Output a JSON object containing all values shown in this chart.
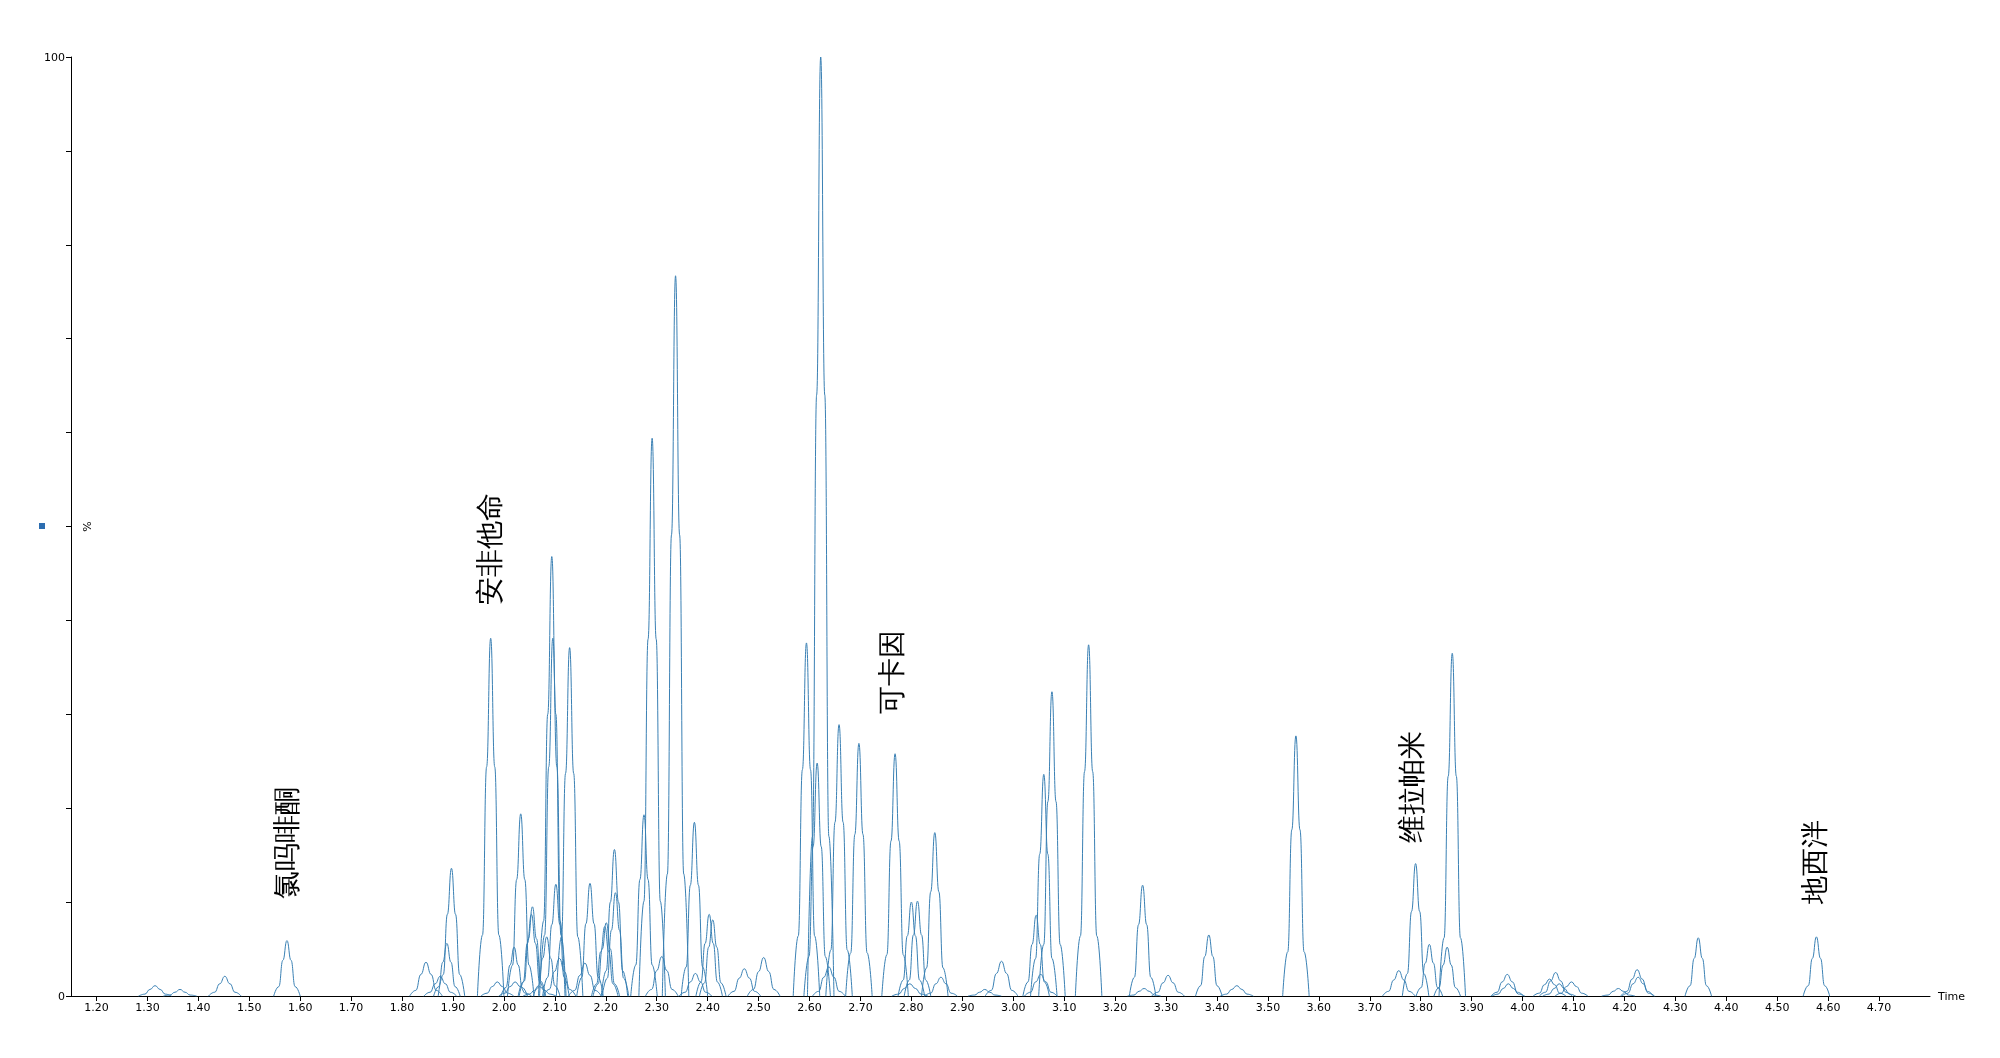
{
  "chart_data": {
    "type": "line",
    "xlabel": "Time",
    "ylabel": "%",
    "color": "#3a80b4",
    "xlim": [
      1.15,
      4.8
    ],
    "ylim": [
      0,
      100
    ],
    "xticks": [
      {
        "value": 1.2,
        "label": "1.20"
      },
      {
        "value": 1.3,
        "label": "1.30"
      },
      {
        "value": 1.4,
        "label": "1.40"
      },
      {
        "value": 1.5,
        "label": "1.50"
      },
      {
        "value": 1.6,
        "label": "1.60"
      },
      {
        "value": 1.7,
        "label": "1.70"
      },
      {
        "value": 1.8,
        "label": "1.80"
      },
      {
        "value": 1.9,
        "label": "1.90"
      },
      {
        "value": 2.0,
        "label": "2.00"
      },
      {
        "value": 2.1,
        "label": "2.10"
      },
      {
        "value": 2.2,
        "label": "2.20"
      },
      {
        "value": 2.3,
        "label": "2.30"
      },
      {
        "value": 2.4,
        "label": "2.40"
      },
      {
        "value": 2.5,
        "label": "2.50"
      },
      {
        "value": 2.6,
        "label": "2.60"
      },
      {
        "value": 2.7,
        "label": "2.70"
      },
      {
        "value": 2.8,
        "label": "2.80"
      },
      {
        "value": 2.9,
        "label": "2.90"
      },
      {
        "value": 3.0,
        "label": "3.00"
      },
      {
        "value": 3.1,
        "label": "3.10"
      },
      {
        "value": 3.2,
        "label": "3.20"
      },
      {
        "value": 3.3,
        "label": "3.30"
      },
      {
        "value": 3.4,
        "label": "3.40"
      },
      {
        "value": 3.5,
        "label": "3.50"
      },
      {
        "value": 3.6,
        "label": "3.60"
      },
      {
        "value": 3.7,
        "label": "3.70"
      },
      {
        "value": 3.8,
        "label": "3.80"
      },
      {
        "value": 3.9,
        "label": "3.90"
      },
      {
        "value": 4.0,
        "label": "4.00"
      },
      {
        "value": 4.1,
        "label": "4.10"
      },
      {
        "value": 4.2,
        "label": "4.20"
      },
      {
        "value": 4.3,
        "label": "4.30"
      },
      {
        "value": 4.4,
        "label": "4.40"
      },
      {
        "value": 4.5,
        "label": "4.50"
      },
      {
        "value": 4.6,
        "label": "4.60"
      },
      {
        "value": 4.7,
        "label": "4.70"
      }
    ],
    "yticks": [
      0,
      {
        "value": 10,
        "label": null
      },
      {
        "value": 20,
        "label": null
      },
      {
        "value": 30,
        "label": null
      },
      {
        "value": 40,
        "label": null
      },
      {
        "value": 50,
        "label": null
      },
      {
        "value": 60,
        "label": null
      },
      {
        "value": 70,
        "label": null
      },
      {
        "value": 80,
        "label": null
      },
      {
        "value": 90,
        "label": null
      },
      100
    ],
    "annotations": [
      "氯吗啡酮",
      "安非他命",
      "可卡因",
      "维拉帕米",
      "地西泮"
    ],
    "series": [
      {
        "x": [
          1.283,
          1.295,
          1.305,
          1.315,
          1.325,
          1.335,
          1.347
        ],
        "values": [
          0,
          0.2,
          0.7,
          1.1,
          0.7,
          0.2,
          0
        ]
      },
      {
        "x": [
          1.332,
          1.344,
          1.354,
          1.364,
          1.374,
          1.384,
          1.396
        ],
        "values": [
          0,
          0.1,
          0.4,
          0.7,
          0.4,
          0.1,
          0
        ]
      },
      {
        "x": [
          1.42,
          1.432,
          1.442,
          1.452,
          1.462,
          1.472,
          1.484
        ],
        "values": [
          0,
          0.4,
          1.3,
          2.1,
          1.3,
          0.4,
          0
        ]
      },
      {
        "x": [
          1.548,
          1.558,
          1.566,
          1.574,
          1.582,
          1.59,
          1.6
        ],
        "values": [
          0,
          1.0,
          3.8,
          5.9,
          3.8,
          1.0,
          0
        ]
      },
      {
        "x": [
          1.815,
          1.827,
          1.837,
          1.847,
          1.857,
          1.867,
          1.879
        ],
        "values": [
          0,
          0.6,
          2.3,
          3.6,
          2.3,
          0.6,
          0
        ]
      },
      {
        "x": [
          1.843,
          1.855,
          1.865,
          1.875,
          1.885,
          1.895,
          1.907
        ],
        "values": [
          0,
          0.4,
          1.3,
          2.1,
          1.3,
          0.4,
          0
        ]
      },
      {
        "x": [
          1.862,
          1.872,
          1.88,
          1.888,
          1.896,
          1.904,
          1.914
        ],
        "values": [
          0,
          1.0,
          3.6,
          5.6,
          3.6,
          1.0,
          0
        ]
      },
      {
        "x": [
          1.871,
          1.881,
          1.889,
          1.897,
          1.905,
          1.913,
          1.923
        ],
        "values": [
          0,
          2.3,
          8.7,
          13.6,
          8.7,
          2.3,
          0
        ]
      },
      {
        "x": [
          1.948,
          1.958,
          1.966,
          1.974,
          1.982,
          1.99,
          2.0
        ],
        "values": [
          0,
          6.5,
          24.4,
          38.1,
          24.4,
          6.5,
          0
        ]
      },
      {
        "x": [
          1.955,
          1.967,
          1.977,
          1.987,
          1.997,
          2.007,
          2.019
        ],
        "values": [
          0,
          0.3,
          1.0,
          1.5,
          1.0,
          0.3,
          0
        ]
      },
      {
        "x": [
          1.994,
          2.004,
          2.012,
          2.02,
          2.028,
          2.036,
          2.046
        ],
        "values": [
          0,
          0.9,
          3.3,
          5.2,
          3.3,
          0.9,
          0
        ]
      },
      {
        "x": [
          1.99,
          2.002,
          2.012,
          2.022,
          2.032,
          2.042,
          2.054
        ],
        "values": [
          0,
          0.3,
          1.0,
          1.5,
          1.0,
          0.3,
          0
        ]
      },
      {
        "x": [
          2.007,
          2.017,
          2.025,
          2.033,
          2.041,
          2.049,
          2.059
        ],
        "values": [
          0,
          3.3,
          12.4,
          19.4,
          12.4,
          3.3,
          0
        ]
      },
      {
        "x": [
          2.028,
          2.038,
          2.046,
          2.054,
          2.062,
          2.07,
          2.08
        ],
        "values": [
          0,
          1.5,
          5.6,
          8.7,
          5.6,
          1.5,
          0
        ]
      },
      {
        "x": [
          2.03,
          2.04,
          2.048,
          2.056,
          2.064,
          2.072,
          2.082
        ],
        "values": [
          0,
          1.6,
          6.1,
          9.5,
          6.1,
          1.6,
          0
        ]
      },
      {
        "x": [
          2.038,
          2.05,
          2.06,
          2.07,
          2.08,
          2.09,
          2.102
        ],
        "values": [
          0,
          0.2,
          0.6,
          1.0,
          0.6,
          0.2,
          0
        ]
      },
      {
        "x": [
          2.058,
          2.068,
          2.076,
          2.084,
          2.092,
          2.1,
          2.11
        ],
        "values": [
          0,
          1.1,
          4.0,
          6.3,
          4.0,
          1.1,
          0
        ]
      },
      {
        "x": [
          2.068,
          2.078,
          2.086,
          2.094,
          2.102,
          2.11,
          2.12
        ],
        "values": [
          0,
          8.0,
          30.0,
          46.8,
          30.0,
          8.0,
          0
        ]
      },
      {
        "x": [
          2.07,
          2.08,
          2.088,
          2.096,
          2.104,
          2.112,
          2.122
        ],
        "values": [
          0,
          6.5,
          24.4,
          38.1,
          24.4,
          6.5,
          0
        ]
      },
      {
        "x": [
          2.076,
          2.086,
          2.094,
          2.102,
          2.11,
          2.118,
          2.128
        ],
        "values": [
          0,
          2.0,
          7.6,
          11.9,
          7.6,
          2.0,
          0
        ]
      },
      {
        "x": [
          2.077,
          2.089,
          2.099,
          2.109,
          2.119,
          2.129,
          2.141
        ],
        "values": [
          0,
          0.7,
          2.6,
          4.0,
          2.6,
          0.7,
          0
        ]
      },
      {
        "x": [
          2.103,
          2.113,
          2.121,
          2.129,
          2.137,
          2.145,
          2.155
        ],
        "values": [
          0,
          6.3,
          23.7,
          37.1,
          23.7,
          6.3,
          0
        ]
      },
      {
        "x": [
          2.127,
          2.139,
          2.149,
          2.159,
          2.169,
          2.179,
          2.191
        ],
        "values": [
          0,
          0.6,
          2.2,
          3.5,
          2.2,
          0.6,
          0
        ]
      },
      {
        "x": [
          2.143,
          2.153,
          2.161,
          2.169,
          2.177,
          2.185,
          2.195
        ],
        "values": [
          0,
          2.0,
          7.7,
          12.0,
          7.7,
          2.0,
          0
        ]
      },
      {
        "x": [
          2.172,
          2.182,
          2.19,
          2.198,
          2.206,
          2.214,
          2.224
        ],
        "values": [
          0,
          1.3,
          4.7,
          7.4,
          4.7,
          1.3,
          0
        ]
      },
      {
        "x": [
          2.175,
          2.185,
          2.193,
          2.201,
          2.209,
          2.217,
          2.227
        ],
        "values": [
          0,
          1.3,
          5.0,
          7.8,
          5.0,
          1.3,
          0
        ]
      },
      {
        "x": [
          2.191,
          2.201,
          2.209,
          2.217,
          2.225,
          2.233,
          2.243
        ],
        "values": [
          0,
          2.7,
          10.0,
          15.6,
          10.0,
          2.7,
          0
        ]
      },
      {
        "x": [
          2.193,
          2.203,
          2.211,
          2.219,
          2.227,
          2.235,
          2.245
        ],
        "values": [
          0,
          1.9,
          7.0,
          11.0,
          7.0,
          1.9,
          0
        ]
      },
      {
        "x": [
          2.249,
          2.259,
          2.267,
          2.275,
          2.283,
          2.291,
          2.301
        ],
        "values": [
          0,
          3.3,
          12.4,
          19.3,
          12.4,
          3.3,
          0
        ]
      },
      {
        "x": [
          2.265,
          2.275,
          2.283,
          2.291,
          2.299,
          2.307,
          2.317
        ],
        "values": [
          0,
          10.1,
          38.0,
          59.4,
          38.0,
          10.1,
          0
        ]
      },
      {
        "x": [
          2.278,
          2.29,
          2.3,
          2.31,
          2.32,
          2.33,
          2.342
        ],
        "values": [
          0,
          0.7,
          2.7,
          4.2,
          2.7,
          0.7,
          0
        ]
      },
      {
        "x": [
          2.311,
          2.321,
          2.329,
          2.337,
          2.345,
          2.353,
          2.363
        ],
        "values": [
          0,
          13.0,
          49.1,
          76.7,
          49.1,
          13.0,
          0
        ]
      },
      {
        "x": [
          2.348,
          2.358,
          2.366,
          2.374,
          2.382,
          2.39,
          2.4
        ],
        "values": [
          0,
          3.1,
          11.8,
          18.5,
          11.8,
          3.1,
          0
        ]
      },
      {
        "x": [
          2.344,
          2.356,
          2.366,
          2.376,
          2.386,
          2.396,
          2.408
        ],
        "values": [
          0,
          0.4,
          1.5,
          2.4,
          1.5,
          0.4,
          0
        ]
      },
      {
        "x": [
          2.377,
          2.387,
          2.395,
          2.403,
          2.411,
          2.419,
          2.429
        ],
        "values": [
          0,
          1.5,
          5.6,
          8.7,
          5.6,
          1.5,
          0
        ]
      },
      {
        "x": [
          2.384,
          2.394,
          2.402,
          2.41,
          2.418,
          2.426,
          2.436
        ],
        "values": [
          0,
          1.4,
          5.2,
          8.1,
          5.2,
          1.4,
          0
        ]
      },
      {
        "x": [
          2.44,
          2.452,
          2.462,
          2.472,
          2.482,
          2.492,
          2.504
        ],
        "values": [
          0,
          0.5,
          1.9,
          2.9,
          1.9,
          0.5,
          0
        ]
      },
      {
        "x": [
          2.478,
          2.49,
          2.5,
          2.51,
          2.52,
          2.53,
          2.542
        ],
        "values": [
          0,
          0.7,
          2.6,
          4.1,
          2.6,
          0.7,
          0
        ]
      },
      {
        "x": [
          2.568,
          2.578,
          2.586,
          2.594,
          2.602,
          2.61,
          2.62
        ],
        "values": [
          0,
          6.4,
          24.1,
          37.6,
          24.1,
          6.4,
          0
        ]
      },
      {
        "x": [
          2.589,
          2.599,
          2.607,
          2.615,
          2.623,
          2.631,
          2.641
        ],
        "values": [
          0,
          4.2,
          15.9,
          24.8,
          15.9,
          4.2,
          0
        ]
      },
      {
        "x": [
          2.596,
          2.606,
          2.614,
          2.622,
          2.63,
          2.638,
          2.648
        ],
        "values": [
          0,
          17,
          64,
          100,
          64,
          17,
          0
        ]
      },
      {
        "x": [
          2.606,
          2.618,
          2.628,
          2.638,
          2.648,
          2.658,
          2.67
        ],
        "values": [
          0,
          0.5,
          2.0,
          3.1,
          2.0,
          0.5,
          0
        ]
      },
      {
        "x": [
          2.632,
          2.642,
          2.65,
          2.658,
          2.666,
          2.674,
          2.684
        ],
        "values": [
          0,
          4.9,
          18.5,
          28.9,
          18.5,
          4.9,
          0
        ]
      },
      {
        "x": [
          2.671,
          2.681,
          2.689,
          2.697,
          2.705,
          2.713,
          2.723
        ],
        "values": [
          0,
          4.6,
          17.2,
          26.9,
          17.2,
          4.6,
          0
        ]
      },
      {
        "x": [
          2.742,
          2.752,
          2.76,
          2.768,
          2.776,
          2.784,
          2.794
        ],
        "values": [
          0,
          4.4,
          16.5,
          25.8,
          16.5,
          4.4,
          0
        ]
      },
      {
        "x": [
          2.762,
          2.775,
          2.786,
          2.797,
          2.808,
          2.819,
          2.832
        ],
        "values": [
          0,
          0.2,
          0.8,
          1.3,
          0.8,
          0.2,
          0
        ]
      },
      {
        "x": [
          2.774,
          2.784,
          2.792,
          2.8,
          2.808,
          2.816,
          2.826
        ],
        "values": [
          0,
          1.7,
          6.4,
          10.0,
          6.4,
          1.7,
          0
        ]
      },
      {
        "x": [
          2.786,
          2.796,
          2.804,
          2.812,
          2.82,
          2.828,
          2.838
        ],
        "values": [
          0,
          1.7,
          6.5,
          10.1,
          6.5,
          1.7,
          0
        ]
      },
      {
        "x": [
          2.82,
          2.83,
          2.838,
          2.846,
          2.854,
          2.862,
          2.872
        ],
        "values": [
          0,
          3.0,
          11.1,
          17.4,
          11.1,
          3.0,
          0
        ]
      },
      {
        "x": [
          2.826,
          2.838,
          2.848,
          2.858,
          2.868,
          2.878,
          2.89
        ],
        "values": [
          0,
          0.3,
          1.3,
          2.0,
          1.3,
          0.3,
          0
        ]
      },
      {
        "x": [
          2.912,
          2.924,
          2.934,
          2.944,
          2.954,
          2.964,
          2.976
        ],
        "values": [
          0,
          0.1,
          0.4,
          0.7,
          0.4,
          0.1,
          0
        ]
      },
      {
        "x": [
          2.945,
          2.957,
          2.967,
          2.977,
          2.987,
          2.997,
          3.009
        ],
        "values": [
          0,
          0.6,
          2.4,
          3.7,
          2.4,
          0.6,
          0
        ]
      },
      {
        "x": [
          3.019,
          3.029,
          3.037,
          3.045,
          3.053,
          3.061,
          3.071
        ],
        "values": [
          0,
          1.5,
          5.5,
          8.6,
          5.5,
          1.5,
          0
        ]
      },
      {
        "x": [
          3.022,
          3.034,
          3.044,
          3.054,
          3.064,
          3.074,
          3.086
        ],
        "values": [
          0,
          0.4,
          1.5,
          2.3,
          1.5,
          0.4,
          0
        ]
      },
      {
        "x": [
          3.034,
          3.044,
          3.052,
          3.06,
          3.068,
          3.076,
          3.086
        ],
        "values": [
          0,
          4.0,
          15.1,
          23.6,
          15.1,
          4.0,
          0
        ]
      },
      {
        "x": [
          3.05,
          3.06,
          3.068,
          3.076,
          3.084,
          3.092,
          3.102
        ],
        "values": [
          0,
          5.5,
          20.7,
          32.4,
          20.7,
          5.5,
          0
        ]
      },
      {
        "x": [
          3.122,
          3.132,
          3.14,
          3.148,
          3.156,
          3.164,
          3.174
        ],
        "values": [
          0,
          6.4,
          23.9,
          37.4,
          23.9,
          6.4,
          0
        ]
      },
      {
        "x": [
          3.228,
          3.238,
          3.246,
          3.254,
          3.262,
          3.27,
          3.28
        ],
        "values": [
          0,
          2.0,
          7.6,
          11.8,
          7.6,
          2.0,
          0
        ]
      },
      {
        "x": [
          3.225,
          3.237,
          3.247,
          3.257,
          3.267,
          3.277,
          3.289
        ],
        "values": [
          0,
          0.1,
          0.5,
          0.8,
          0.5,
          0.1,
          0
        ]
      },
      {
        "x": [
          3.272,
          3.284,
          3.294,
          3.304,
          3.314,
          3.324,
          3.336
        ],
        "values": [
          0,
          0.4,
          1.4,
          2.2,
          1.4,
          0.4,
          0
        ]
      },
      {
        "x": [
          3.358,
          3.368,
          3.376,
          3.384,
          3.392,
          3.4,
          3.41
        ],
        "values": [
          0,
          1.1,
          4.2,
          6.5,
          4.2,
          1.1,
          0
        ]
      },
      {
        "x": [
          3.407,
          3.419,
          3.429,
          3.439,
          3.449,
          3.459,
          3.471
        ],
        "values": [
          0,
          0.2,
          0.7,
          1.1,
          0.7,
          0.2,
          0
        ]
      },
      {
        "x": [
          3.529,
          3.539,
          3.547,
          3.555,
          3.563,
          3.571,
          3.581
        ],
        "values": [
          0,
          4.7,
          17.7,
          27.7,
          17.7,
          4.7,
          0
        ]
      },
      {
        "x": [
          3.725,
          3.737,
          3.747,
          3.757,
          3.767,
          3.777,
          3.789
        ],
        "values": [
          0,
          0.5,
          1.7,
          2.7,
          1.7,
          0.5,
          0
        ]
      },
      {
        "x": [
          3.764,
          3.774,
          3.782,
          3.79,
          3.798,
          3.806,
          3.816
        ],
        "values": [
          0,
          2.4,
          9.0,
          14.1,
          9.0,
          2.4,
          0
        ]
      },
      {
        "x": [
          3.791,
          3.801,
          3.809,
          3.817,
          3.825,
          3.833,
          3.843
        ],
        "values": [
          0,
          0.9,
          3.5,
          5.5,
          3.5,
          0.9,
          0
        ]
      },
      {
        "x": [
          3.826,
          3.836,
          3.844,
          3.852,
          3.86,
          3.868,
          3.878
        ],
        "values": [
          0,
          0.9,
          3.3,
          5.2,
          3.3,
          0.9,
          0
        ]
      },
      {
        "x": [
          3.836,
          3.846,
          3.854,
          3.862,
          3.87,
          3.878,
          3.888
        ],
        "values": [
          0,
          6.2,
          23.4,
          36.5,
          23.4,
          6.2,
          0
        ]
      },
      {
        "x": [
          3.938,
          3.95,
          3.96,
          3.97,
          3.98,
          3.99,
          4.002
        ],
        "values": [
          0,
          0.4,
          1.5,
          2.3,
          1.5,
          0.4,
          0
        ]
      },
      {
        "x": [
          3.94,
          3.952,
          3.962,
          3.972,
          3.982,
          3.992,
          4.004
        ],
        "values": [
          0,
          0.2,
          0.8,
          1.3,
          0.8,
          0.2,
          0
        ]
      },
      {
        "x": [
          4.021,
          4.033,
          4.043,
          4.053,
          4.063,
          4.073,
          4.085
        ],
        "values": [
          0,
          0.3,
          1.2,
          1.8,
          1.2,
          0.3,
          0
        ]
      },
      {
        "x": [
          4.033,
          4.045,
          4.055,
          4.065,
          4.075,
          4.085,
          4.097
        ],
        "values": [
          0,
          0.4,
          1.6,
          2.5,
          1.6,
          0.4,
          0
        ]
      },
      {
        "x": [
          4.04,
          4.052,
          4.062,
          4.072,
          4.082,
          4.092,
          4.104
        ],
        "values": [
          0,
          0.2,
          0.8,
          1.3,
          0.8,
          0.2,
          0
        ]
      },
      {
        "x": [
          4.064,
          4.076,
          4.086,
          4.096,
          4.106,
          4.116,
          4.128
        ],
        "values": [
          0,
          0.3,
          1.0,
          1.5,
          1.0,
          0.3,
          0
        ]
      },
      {
        "x": [
          4.156,
          4.168,
          4.178,
          4.188,
          4.198,
          4.208,
          4.22
        ],
        "values": [
          0,
          0.1,
          0.5,
          0.8,
          0.5,
          0.1,
          0
        ]
      },
      {
        "x": [
          4.193,
          4.205,
          4.215,
          4.225,
          4.235,
          4.245,
          4.257
        ],
        "values": [
          0,
          0.5,
          1.8,
          2.8,
          1.8,
          0.5,
          0
        ]
      },
      {
        "x": [
          4.195,
          4.207,
          4.217,
          4.227,
          4.237,
          4.247,
          4.259
        ],
        "values": [
          0,
          0.3,
          1.3,
          2.0,
          1.3,
          0.3,
          0
        ]
      },
      {
        "x": [
          4.319,
          4.329,
          4.337,
          4.345,
          4.353,
          4.361,
          4.371
        ],
        "values": [
          0,
          1.1,
          4.0,
          6.2,
          4.0,
          1.1,
          0
        ]
      },
      {
        "x": [
          4.551,
          4.561,
          4.569,
          4.577,
          4.585,
          4.593,
          4.603
        ],
        "values": [
          0,
          1.1,
          4.0,
          6.3,
          4.0,
          1.1,
          0
        ]
      }
    ]
  }
}
